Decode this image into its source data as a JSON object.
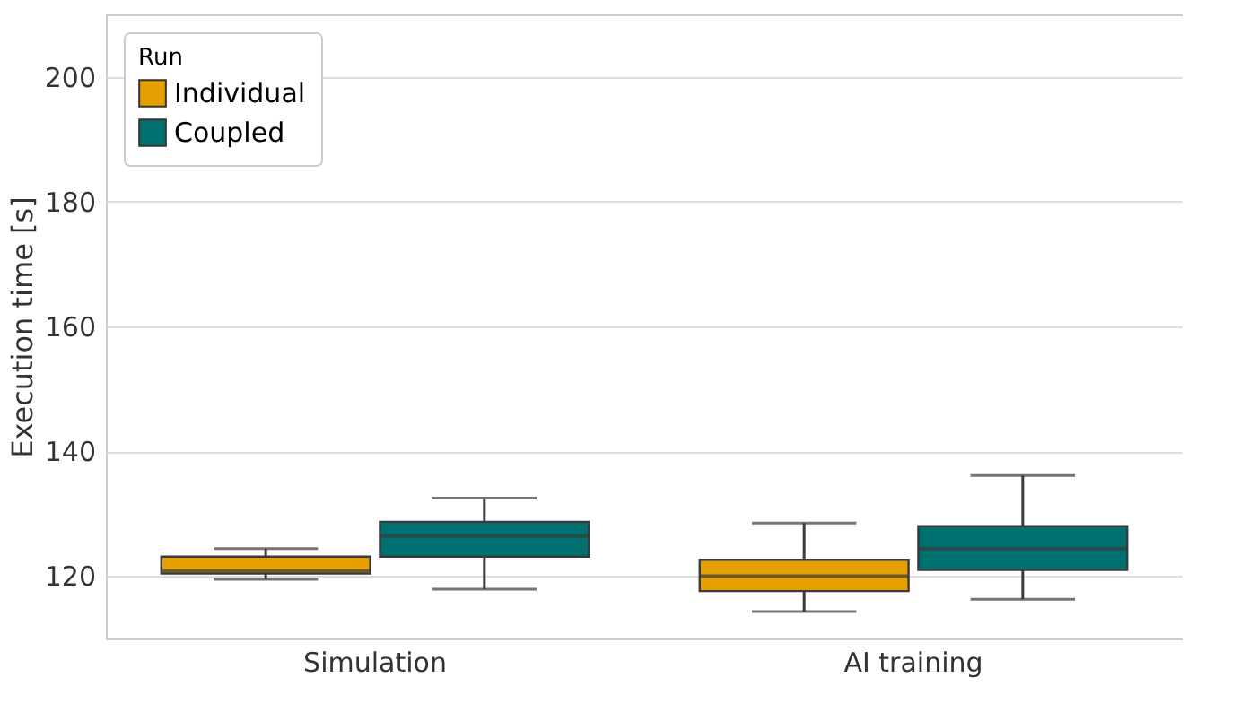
{
  "chart_data": {
    "type": "box",
    "ylabel": "Execution time [s]",
    "legend_title": "Run",
    "categories": [
      "Simulation",
      "AI training"
    ],
    "ylim": [
      110,
      210
    ],
    "yticks": [
      120,
      140,
      160,
      180,
      200
    ],
    "grid": "y",
    "legend": "top left",
    "series": [
      {
        "name": "Individual",
        "color": "#e69f00",
        "boxes": [
          {
            "low": 119.5,
            "q1": 120.4,
            "median": 120.8,
            "q3": 123.1,
            "high": 124.4
          },
          {
            "low": 114.3,
            "q1": 117.6,
            "median": 120,
            "q3": 122.6,
            "high": 128.5
          }
        ]
      },
      {
        "name": "Coupled",
        "color": "#007070",
        "boxes": [
          {
            "low": 117.9,
            "q1": 123.1,
            "median": 126.4,
            "q3": 128.7,
            "high": 132.5
          },
          {
            "low": 116.3,
            "q1": 121,
            "median": 124.4,
            "q3": 128,
            "high": 136.1
          }
        ]
      }
    ]
  }
}
